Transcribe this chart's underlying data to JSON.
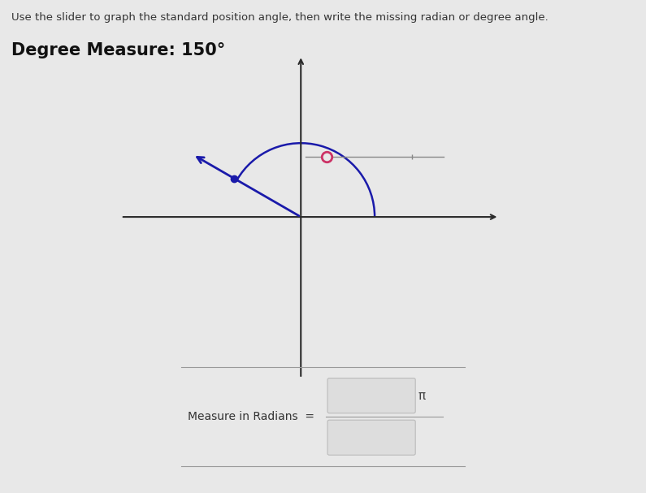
{
  "instruction_text": "Use the slider to graph the standard position angle, then write the missing radian or degree angle.",
  "degree_label": "Degree Measure: 150°",
  "degree_value": 150,
  "bg_color": "#e8e8e8",
  "plot_bg_color": "#e8e8e8",
  "axis_color": "#2a2a2a",
  "angle_line_color": "#1a1aaa",
  "arc_color": "#1a1aaa",
  "origin_marker_color": "#993366",
  "measure_label": "Measure in Radians  =",
  "pi_symbol": "π",
  "instruction_fontsize": 9.5,
  "degree_fontsize": 15,
  "measure_fontsize": 10,
  "slider_circle_color": "#cc3366",
  "slider_line_color": "#555555"
}
